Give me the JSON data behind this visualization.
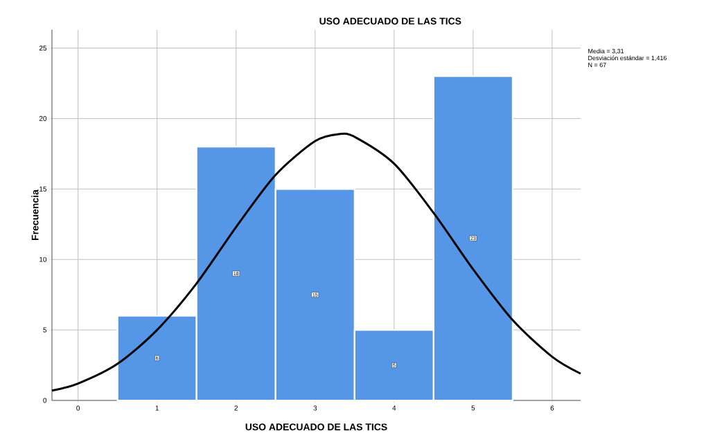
{
  "chart_data": {
    "type": "histogram",
    "title": "USO ADECUADO DE LAS TICS",
    "xlabel": "USO ADECUADO DE LAS TICS",
    "ylabel": "Frecuencia",
    "annotations": [
      "Media = 3,31",
      "Desviación estándar = 1,416",
      "N = 67"
    ],
    "series": [
      {
        "bins": [
          0.5,
          1.5,
          2.5,
          3.5,
          4.5,
          5.5
        ],
        "values": [
          6,
          18,
          15,
          5,
          23
        ],
        "value_labels": [
          "6",
          "18",
          "15",
          "5",
          "23"
        ],
        "color": "#5596e6"
      },
      {
        "type": "line",
        "color": "#000000",
        "x": [
          -0.33,
          0,
          0.5,
          1,
          1.5,
          2,
          2.5,
          3,
          3.31,
          3.5,
          4,
          4.5,
          5,
          5.5,
          6,
          6.36
        ],
        "values": [
          0.7,
          1.2,
          2.6,
          5.0,
          8.3,
          12.3,
          16.0,
          18.4,
          18.9,
          18.7,
          16.8,
          13.3,
          9.3,
          5.7,
          3.1,
          1.9
        ]
      }
    ],
    "grid": true,
    "xlim": [
      -0.33,
      6.36
    ],
    "ylim": [
      0,
      26.3
    ],
    "xticks": [
      0,
      1,
      2,
      3,
      4,
      5,
      6
    ],
    "yticks": [
      0,
      5,
      10,
      15,
      20,
      25
    ]
  }
}
